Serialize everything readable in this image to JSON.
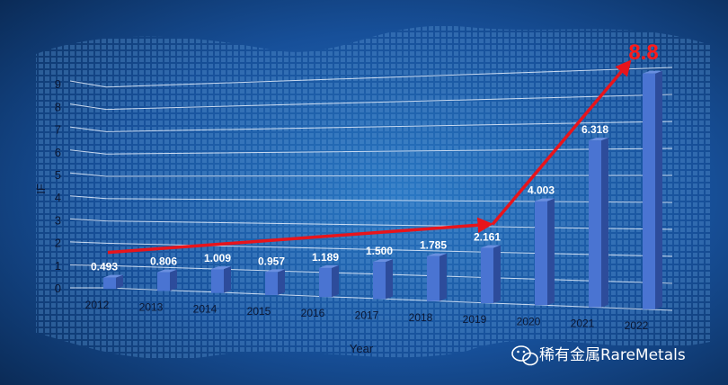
{
  "chart_data": {
    "type": "bar",
    "categories": [
      "2012",
      "2013",
      "2014",
      "2015",
      "2016",
      "2017",
      "2018",
      "2019",
      "2020",
      "2021",
      "2022"
    ],
    "values": [
      0.493,
      0.806,
      1.009,
      0.957,
      1.189,
      1.5,
      1.785,
      2.161,
      4.003,
      6.318,
      8.8
    ],
    "data_labels": [
      "0.493",
      "0.806",
      "1.009",
      "0.957",
      "1.189",
      "1.500",
      "1.785",
      "2.161",
      "4.003",
      "6.318",
      "8.8"
    ],
    "yticks": [
      "0",
      "1",
      "2",
      "3",
      "4",
      "5",
      "6",
      "7",
      "8",
      "9"
    ],
    "xlabel": "Year",
    "ylabel": "IF",
    "ylim": [
      0,
      9.5
    ],
    "grid": true,
    "trend_arrow_color": "#e8141b",
    "highlight_value": "8.8"
  },
  "colors": {
    "background_center": "#1f66b3",
    "background_edge": "#0a2a55",
    "bar_front": "#4a74d2",
    "bar_side": "#2d4c9b",
    "bar_top": "#6a8fe0",
    "arrow": "#e8141b"
  },
  "watermark": {
    "icon": "wechat-icon",
    "text": "稀有金属RareMetals"
  }
}
